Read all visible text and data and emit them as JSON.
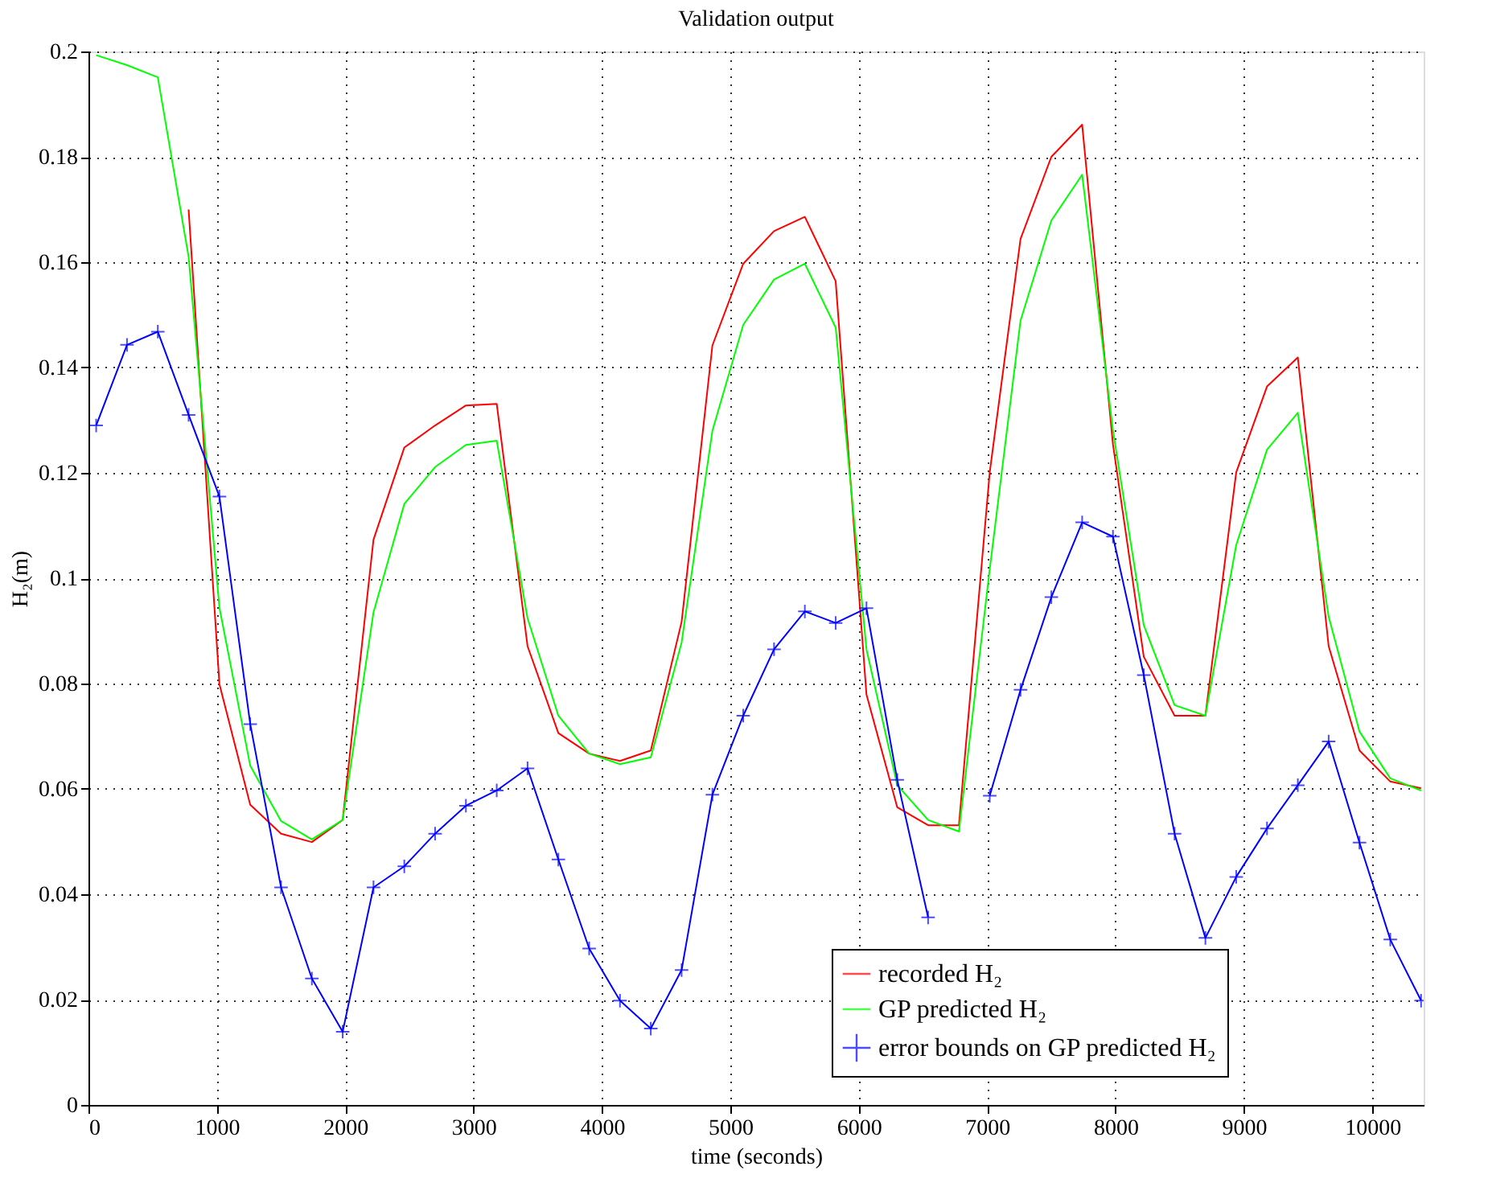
{
  "chart_data": {
    "type": "line",
    "title": "Validation output",
    "xlabel": "time (seconds)",
    "ylabel": "H₂(m)",
    "x": [
      60,
      300,
      540,
      780,
      1020,
      1260,
      1500,
      1740,
      1980,
      2220,
      2460,
      2700,
      2940,
      3180,
      3420,
      3660,
      3900,
      4140,
      4380,
      4620,
      4860,
      5100,
      5340,
      5580,
      5820,
      6060,
      6300,
      6540,
      6780,
      7020,
      7260,
      7500,
      7740,
      7980,
      8220,
      8460,
      8700,
      8940,
      9180,
      9420,
      9660,
      9900,
      10140,
      10380
    ],
    "series": [
      {
        "name": "recorded H₂",
        "color": "#ff0000",
        "marker": "none",
        "values": [
          null,
          null,
          null,
          0.17,
          0.0799,
          0.057,
          0.0515,
          0.0499,
          0.0541,
          0.1073,
          0.1248,
          0.129,
          0.1328,
          0.1331,
          0.0871,
          0.0706,
          0.0667,
          0.0653,
          0.0673,
          0.0917,
          0.1442,
          0.1597,
          0.1659,
          0.1686,
          0.1564,
          0.0779,
          0.0565,
          0.0531,
          0.0531,
          0.1201,
          0.1644,
          0.18,
          0.1861,
          0.1254,
          0.0851,
          0.0739,
          0.0739,
          0.1201,
          0.1364,
          0.1419,
          0.0871,
          0.0673,
          0.0614,
          0.0601
        ]
      },
      {
        "name": "GP predicted H₂",
        "color": "#00ff00",
        "marker": "none",
        "values": [
          0.1993,
          0.1974,
          0.1951,
          0.161,
          0.0944,
          0.0644,
          0.0539,
          0.0504,
          0.0541,
          0.0935,
          0.1141,
          0.1211,
          0.1253,
          0.1261,
          0.0924,
          0.0739,
          0.0667,
          0.0647,
          0.066,
          0.0878,
          0.128,
          0.1481,
          0.1567,
          0.1597,
          0.1476,
          0.0865,
          0.0607,
          0.0541,
          0.0519,
          0.1017,
          0.1489,
          0.1679,
          0.1766,
          0.128,
          0.0911,
          0.0759,
          0.0739,
          0.1063,
          0.1244,
          0.1314,
          0.0927,
          0.0709,
          0.062,
          0.0597
        ]
      },
      {
        "name": "error bounds on GP predicted H₂",
        "color": "#0000ff",
        "marker": "cross",
        "values": [
          0.129,
          0.1443,
          0.1468,
          0.131,
          0.1155,
          0.0723,
          0.0413,
          0.024,
          0.0139,
          0.0413,
          0.0453,
          0.0515,
          0.0568,
          0.0597,
          0.0639,
          0.0466,
          0.0297,
          0.0198,
          0.0145,
          0.0256,
          0.0589,
          0.0739,
          0.0865,
          0.0937,
          0.0915,
          0.0943,
          0.0617,
          0.0356,
          null,
          0.0587,
          0.0788,
          0.0964,
          0.1106,
          0.1079,
          0.0816,
          0.0515,
          0.0317,
          0.0433,
          0.0525,
          0.0607,
          0.069,
          0.0498,
          0.0314,
          0.0198
        ]
      }
    ],
    "xlim": [
      0,
      10400
    ],
    "xticks": [
      0,
      1000,
      2000,
      3000,
      4000,
      5000,
      6000,
      7000,
      8000,
      9000,
      10000
    ],
    "ylim": [
      0,
      0.2
    ],
    "yticks": [
      0,
      0.02,
      0.04,
      0.06,
      0.08,
      0.1,
      0.12,
      0.14,
      0.16,
      0.18,
      0.2
    ],
    "grid": true,
    "legend": "bottom right",
    "line_style": "solid"
  }
}
